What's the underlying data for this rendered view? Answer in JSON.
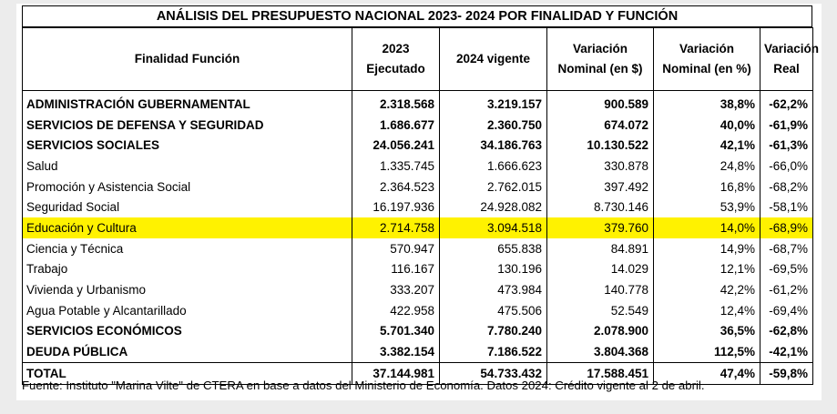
{
  "title": "ANÁLISIS DEL PRESUPUESTO NACIONAL 2023- 2024 POR FINALIDAD Y FUNCIÓN",
  "headers": {
    "col1": "Finalidad Función",
    "col2_line1": "2023",
    "col2_line2": "Ejecutado",
    "col3": "2024 vigente",
    "col4_line1": "Variación",
    "col4_line2": "Nominal (en $)",
    "col5_line1": "Variación",
    "col5_line2": "Nominal (en %)",
    "col6_line1": "Variación",
    "col6_line2": "Real"
  },
  "rows": [
    {
      "name": "ADMINISTRACIÓN GUBERNAMENTAL",
      "ejecutado_2023": "2.318.568",
      "vigente_2024": "3.219.157",
      "var_nominal": "900.589",
      "var_pct": "38,8%",
      "var_real": "-62,2%"
    },
    {
      "name": "SERVICIOS DE DEFENSA Y SEGURIDAD",
      "ejecutado_2023": "1.686.677",
      "vigente_2024": "2.360.750",
      "var_nominal": "674.072",
      "var_pct": "40,0%",
      "var_real": "-61,9%"
    },
    {
      "name": "SERVICIOS SOCIALES",
      "ejecutado_2023": "24.056.241",
      "vigente_2024": "34.186.763",
      "var_nominal": "10.130.522",
      "var_pct": "42,1%",
      "var_real": "-61,3%"
    },
    {
      "name": "Salud",
      "ejecutado_2023": "1.335.745",
      "vigente_2024": "1.666.623",
      "var_nominal": "330.878",
      "var_pct": "24,8%",
      "var_real": "-66,0%"
    },
    {
      "name": "Promoción y Asistencia Social",
      "ejecutado_2023": "2.364.523",
      "vigente_2024": "2.762.015",
      "var_nominal": "397.492",
      "var_pct": "16,8%",
      "var_real": "-68,2%"
    },
    {
      "name": "Seguridad Social",
      "ejecutado_2023": "16.197.936",
      "vigente_2024": "24.928.082",
      "var_nominal": "8.730.146",
      "var_pct": "53,9%",
      "var_real": "-58,1%"
    },
    {
      "name": "Educación y Cultura",
      "ejecutado_2023": "2.714.758",
      "vigente_2024": "3.094.518",
      "var_nominal": "379.760",
      "var_pct": "14,0%",
      "var_real": "-68,9%"
    },
    {
      "name": "Ciencia y Técnica",
      "ejecutado_2023": "570.947",
      "vigente_2024": "655.838",
      "var_nominal": "84.891",
      "var_pct": "14,9%",
      "var_real": "-68,7%"
    },
    {
      "name": "Trabajo",
      "ejecutado_2023": "116.167",
      "vigente_2024": "130.196",
      "var_nominal": "14.029",
      "var_pct": "12,1%",
      "var_real": "-69,5%"
    },
    {
      "name": "Vivienda y Urbanismo",
      "ejecutado_2023": "333.207",
      "vigente_2024": "473.984",
      "var_nominal": "140.778",
      "var_pct": "42,2%",
      "var_real": "-61,2%"
    },
    {
      "name": "Agua Potable y Alcantarillado",
      "ejecutado_2023": "422.958",
      "vigente_2024": "475.506",
      "var_nominal": "52.549",
      "var_pct": "12,4%",
      "var_real": "-69,4%"
    },
    {
      "name": "SERVICIOS ECONÓMICOS",
      "ejecutado_2023": "5.701.340",
      "vigente_2024": "7.780.240",
      "var_nominal": "2.078.900",
      "var_pct": "36,5%",
      "var_real": "-62,8%"
    },
    {
      "name": "DEUDA PÚBLICA",
      "ejecutado_2023": "3.382.154",
      "vigente_2024": "7.186.522",
      "var_nominal": "3.804.368",
      "var_pct": "112,5%",
      "var_real": "-42,1%"
    }
  ],
  "total": {
    "name": "TOTAL",
    "ejecutado_2023": "37.144.981",
    "vigente_2024": "54.733.432",
    "var_nominal": "17.588.451",
    "var_pct": "47,4%",
    "var_real": "-59,8%"
  },
  "footer": "Fuente: Instituto \"Marina Vilte\" de CTERA en base a datos del Ministerio de Economía. Datos 2024: Crédito vigente al 2 de abril.",
  "colors": {
    "highlight": "#fff200",
    "border": "#000000"
  }
}
